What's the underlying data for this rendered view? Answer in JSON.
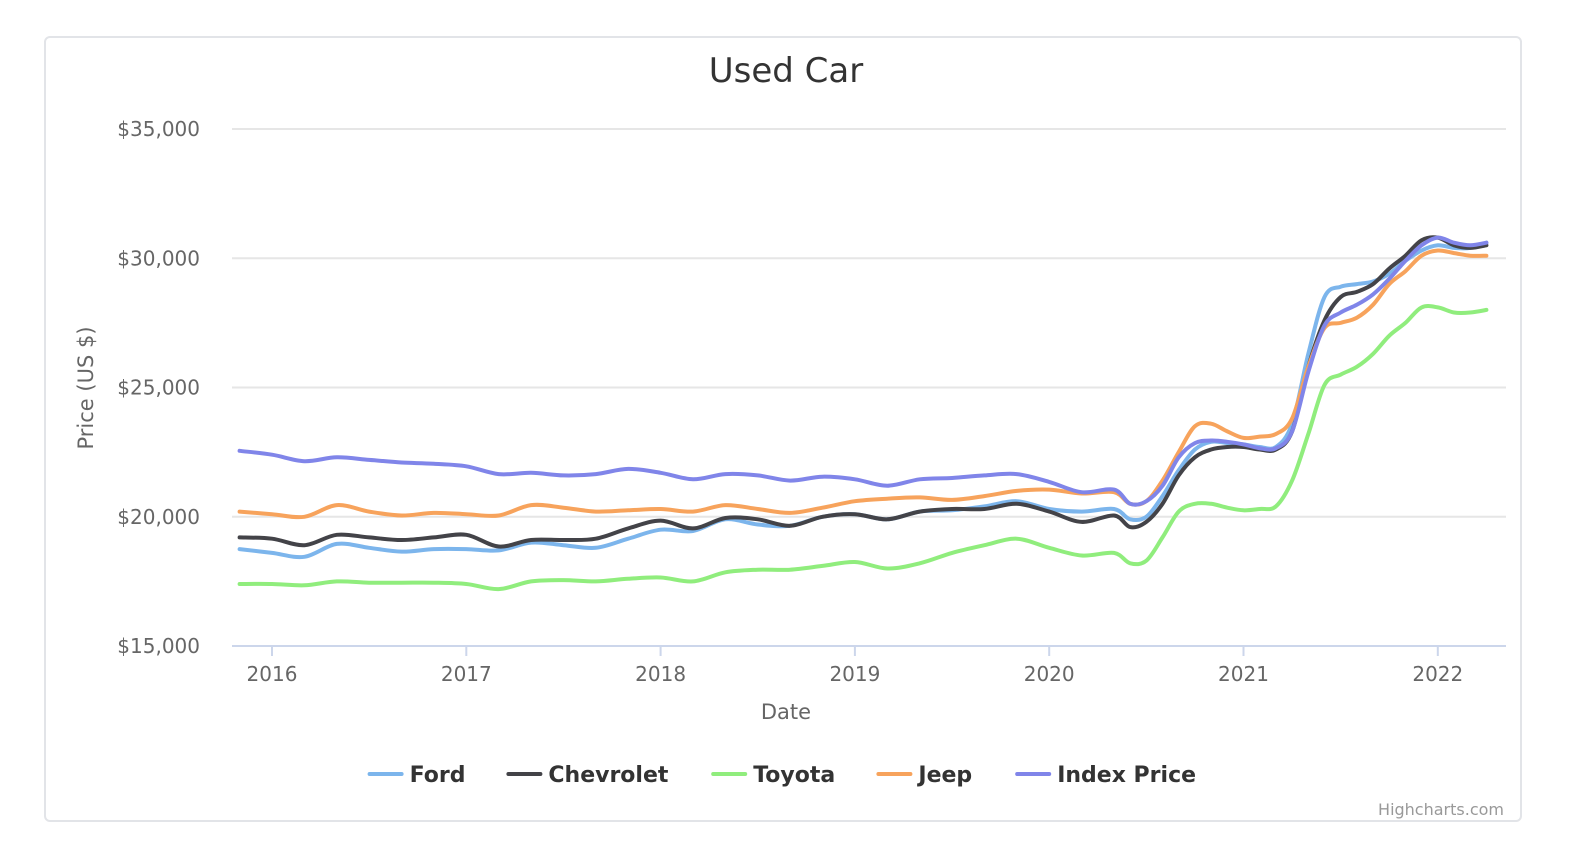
{
  "chart_data": {
    "type": "line",
    "title": "Used Car",
    "xlabel": "Date",
    "ylabel": "Price (US $)",
    "x_ticks": [
      "2016",
      "2017",
      "2018",
      "2019",
      "2020",
      "2021",
      "2022"
    ],
    "y_ticks": [
      "$15,000",
      "$20,000",
      "$25,000",
      "$30,000",
      "$35,000"
    ],
    "y_tick_values": [
      15000,
      20000,
      25000,
      30000,
      35000
    ],
    "ylim": [
      15000,
      35000
    ],
    "xlim": [
      "2015-11",
      "2022-04"
    ],
    "grid": "horizontal",
    "legend": "bottom-center",
    "credits": "Highcharts.com",
    "x": [
      "2015-11",
      "2016-01",
      "2016-03",
      "2016-05",
      "2016-07",
      "2016-09",
      "2016-11",
      "2017-01",
      "2017-03",
      "2017-05",
      "2017-07",
      "2017-09",
      "2017-11",
      "2018-01",
      "2018-03",
      "2018-05",
      "2018-07",
      "2018-09",
      "2018-11",
      "2019-01",
      "2019-03",
      "2019-05",
      "2019-07",
      "2019-09",
      "2019-11",
      "2020-01",
      "2020-03",
      "2020-05",
      "2020-06",
      "2020-07",
      "2020-08",
      "2020-09",
      "2020-10",
      "2020-11",
      "2020-12",
      "2021-01",
      "2021-02",
      "2021-03",
      "2021-04",
      "2021-05",
      "2021-06",
      "2021-07",
      "2021-08",
      "2021-09",
      "2021-10",
      "2021-11",
      "2021-12",
      "2022-01",
      "2022-02",
      "2022-03",
      "2022-04"
    ],
    "series": [
      {
        "name": "Ford",
        "color": "#7cb5ec",
        "values": [
          18750,
          18600,
          18450,
          18950,
          18800,
          18650,
          18750,
          18750,
          18700,
          19000,
          18900,
          18800,
          19150,
          19500,
          19450,
          19900,
          19700,
          19650,
          20000,
          20100,
          19900,
          20200,
          20250,
          20400,
          20600,
          20300,
          20200,
          20300,
          19900,
          20000,
          20800,
          21800,
          22600,
          22900,
          22850,
          22800,
          22700,
          22700,
          23600,
          26300,
          28500,
          28900,
          29000,
          29100,
          29400,
          29900,
          30300,
          30500,
          30400,
          30400,
          30600
        ]
      },
      {
        "name": "Chevrolet",
        "color": "#434348",
        "values": [
          19200,
          19150,
          18900,
          19300,
          19200,
          19100,
          19200,
          19300,
          18850,
          19100,
          19100,
          19150,
          19550,
          19850,
          19550,
          19950,
          19900,
          19650,
          20000,
          20100,
          19900,
          20200,
          20300,
          20300,
          20500,
          20200,
          19800,
          20050,
          19600,
          19800,
          20500,
          21600,
          22300,
          22600,
          22700,
          22700,
          22600,
          22600,
          23300,
          25800,
          27600,
          28500,
          28700,
          29000,
          29600,
          30100,
          30700,
          30800,
          30500,
          30400,
          30500
        ]
      },
      {
        "name": "Toyota",
        "color": "#90ed7d",
        "values": [
          17400,
          17400,
          17350,
          17500,
          17450,
          17450,
          17450,
          17400,
          17200,
          17500,
          17550,
          17500,
          17600,
          17650,
          17500,
          17850,
          17950,
          17950,
          18100,
          18250,
          18000,
          18200,
          18600,
          18900,
          19150,
          18800,
          18500,
          18600,
          18200,
          18300,
          19200,
          20200,
          20500,
          20500,
          20350,
          20250,
          20300,
          20400,
          21400,
          23200,
          25100,
          25500,
          25800,
          26300,
          27000,
          27500,
          28100,
          28100,
          27900,
          27900,
          28000
        ]
      },
      {
        "name": "Jeep",
        "color": "#f7a35c",
        "values": [
          20200,
          20100,
          20000,
          20450,
          20200,
          20050,
          20150,
          20100,
          20050,
          20450,
          20350,
          20200,
          20250,
          20300,
          20200,
          20450,
          20300,
          20150,
          20350,
          20600,
          20700,
          20750,
          20650,
          20800,
          21000,
          21050,
          20900,
          20950,
          20500,
          20600,
          21400,
          22500,
          23500,
          23600,
          23300,
          23050,
          23100,
          23200,
          23800,
          25800,
          27300,
          27500,
          27700,
          28200,
          29000,
          29500,
          30100,
          30300,
          30200,
          30100,
          30100
        ]
      },
      {
        "name": "Index Price",
        "color": "#8085e9",
        "values": [
          22550,
          22400,
          22150,
          22300,
          22200,
          22100,
          22050,
          21950,
          21650,
          21700,
          21600,
          21650,
          21850,
          21700,
          21450,
          21650,
          21600,
          21400,
          21550,
          21450,
          21200,
          21450,
          21500,
          21600,
          21650,
          21350,
          20950,
          21050,
          20500,
          20600,
          21200,
          22300,
          22850,
          22950,
          22900,
          22800,
          22650,
          22650,
          23300,
          25600,
          27400,
          27900,
          28200,
          28600,
          29200,
          29900,
          30500,
          30800,
          30600,
          30500,
          30600
        ]
      }
    ]
  }
}
